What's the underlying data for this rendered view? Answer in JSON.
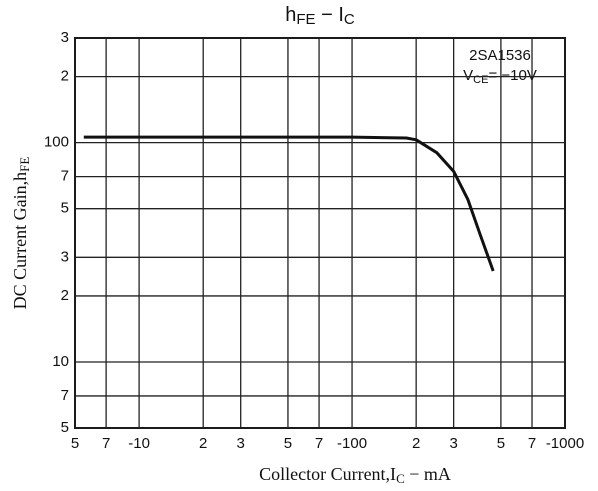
{
  "chart_data": {
    "type": "line",
    "title": [
      "h",
      "FE",
      " − I",
      "C"
    ],
    "xlabel": [
      "Collector Current,I",
      "C",
      " − mA"
    ],
    "ylabel": [
      "DC Current Gain,h",
      "FE"
    ],
    "annotations": [
      [
        "2SA1536"
      ],
      [
        "V",
        "CE",
        "= −10V"
      ]
    ],
    "log_x": true,
    "log_y": true,
    "grid": true,
    "xlim": [
      -5,
      -1000
    ],
    "ylim": [
      5,
      300
    ],
    "xticks": [
      {
        "value": -5,
        "label": "5"
      },
      {
        "value": -7,
        "label": "7"
      },
      -10,
      {
        "value": -20,
        "label": "2"
      },
      {
        "value": -30,
        "label": "3"
      },
      {
        "value": -50,
        "label": "5"
      },
      {
        "value": -70,
        "label": "7"
      },
      -100,
      {
        "value": -200,
        "label": "2"
      },
      {
        "value": -300,
        "label": "3"
      },
      {
        "value": -500,
        "label": "5"
      },
      {
        "value": -700,
        "label": "7"
      },
      -1000
    ],
    "yticks": [
      5,
      7,
      10,
      {
        "value": 20,
        "label": "2"
      },
      {
        "value": 30,
        "label": "3"
      },
      {
        "value": 50,
        "label": "5"
      },
      {
        "value": 70,
        "label": "7"
      },
      100,
      {
        "value": 200,
        "label": "2"
      },
      {
        "value": 300,
        "label": "3"
      }
    ],
    "series": [
      {
        "color": "#111111",
        "x": [
          -5.5,
          -10,
          -50,
          -100,
          -180,
          -200,
          -250,
          -300,
          -350,
          -400,
          -460
        ],
        "values": [
          106,
          106,
          106,
          106,
          105,
          103,
          90,
          74,
          55,
          38,
          26
        ]
      }
    ]
  }
}
